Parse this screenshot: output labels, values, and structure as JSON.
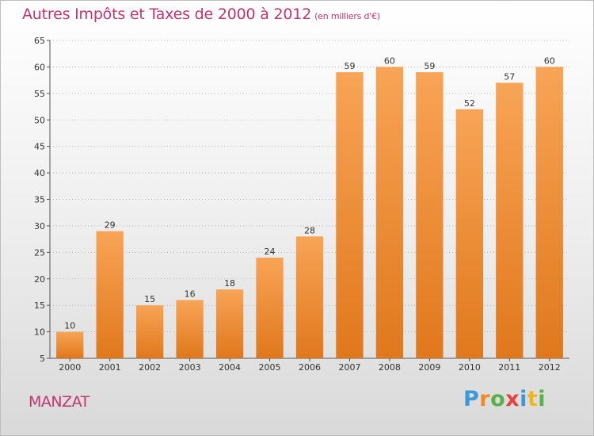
{
  "title": "Autres Impôts et Taxes de 2000 à 2012",
  "subtitle": "(en milliers d'€)",
  "commune": "MANZAT",
  "logo": {
    "text": "Proxiti",
    "letters": [
      {
        "ch": "P",
        "color": "#3a9ad9"
      },
      {
        "ch": "r",
        "color": "#f08a24"
      },
      {
        "ch": "o",
        "color": "#59b047"
      },
      {
        "ch": "x",
        "color": "#e8423e"
      },
      {
        "ch": "i",
        "color": "#3a9ad9"
      },
      {
        "ch": "t",
        "color": "#f2b51d"
      },
      {
        "ch": "i",
        "color": "#59b047"
      }
    ]
  },
  "colors": {
    "bar_light": "#f8a456",
    "bar_dark": "#e0781c",
    "title": "#c0366f",
    "axis": "#555555",
    "grid": "#aaaaaa"
  },
  "chart_data": {
    "type": "bar",
    "categories": [
      "2000",
      "2001",
      "2002",
      "2003",
      "2004",
      "2005",
      "2006",
      "2007",
      "2008",
      "2009",
      "2010",
      "2011",
      "2012"
    ],
    "values": [
      10,
      29,
      15,
      16,
      18,
      24,
      28,
      59,
      60,
      59,
      52,
      57,
      60
    ],
    "ylim": [
      5,
      65
    ],
    "yticks": [
      5,
      10,
      15,
      20,
      25,
      30,
      35,
      40,
      45,
      50,
      55,
      60,
      65
    ],
    "xlabel": "",
    "ylabel": "",
    "grid": true,
    "data_labels": true
  }
}
